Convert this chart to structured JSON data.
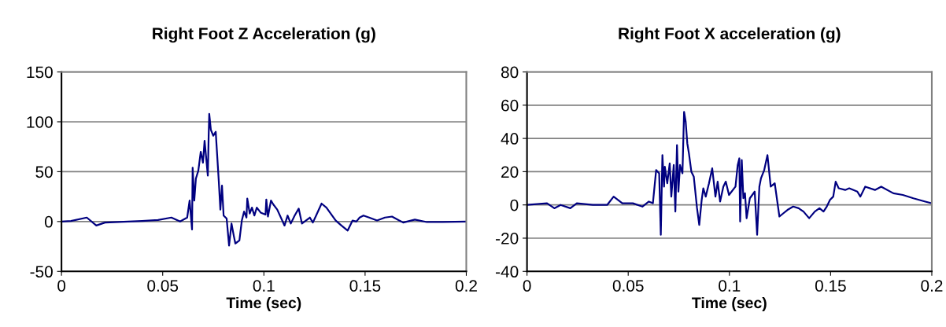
{
  "chart_data": [
    {
      "type": "line",
      "title": "Right Foot Z Acceleration (g)",
      "xlabel": "Time (sec)",
      "xlim": [
        0,
        0.2
      ],
      "xticks": [
        0,
        0.05,
        0.1,
        0.15,
        0.2
      ],
      "ylim": [
        -50,
        150
      ],
      "yticks": [
        -50,
        0,
        50,
        100,
        150
      ],
      "grid": "y",
      "marker": "none",
      "line_style": "solid",
      "series": [
        {
          "color": "#000080",
          "x": [
            0,
            0.0047,
            0.0125,
            0.0172,
            0.0215,
            0.0398,
            0.0477,
            0.0543,
            0.0586,
            0.0621,
            0.0633,
            0.0645,
            0.0648,
            0.0656,
            0.0664,
            0.0676,
            0.0688,
            0.0699,
            0.0707,
            0.0723,
            0.0727,
            0.073,
            0.0738,
            0.075,
            0.0762,
            0.0777,
            0.0785,
            0.0793,
            0.0801,
            0.0816,
            0.0828,
            0.084,
            0.0852,
            0.0859,
            0.0879,
            0.0891,
            0.0902,
            0.0914,
            0.0918,
            0.093,
            0.0941,
            0.0953,
            0.0965,
            0.0984,
            0.1008,
            0.1012,
            0.102,
            0.1035,
            0.1047,
            0.1066,
            0.1102,
            0.1117,
            0.1133,
            0.1152,
            0.1172,
            0.1188,
            0.1227,
            0.1242,
            0.1258,
            0.1285,
            0.1309,
            0.1355,
            0.1383,
            0.1414,
            0.1438,
            0.1457,
            0.1473,
            0.1492,
            0.152,
            0.1559,
            0.1598,
            0.1633,
            0.1688,
            0.1746,
            0.1805,
            0.1883,
            0.2
          ],
          "values": [
            0,
            0.5,
            4,
            -4,
            -1,
            0.5,
            1.5,
            4,
            0,
            4,
            21,
            -8,
            54,
            21,
            43,
            51,
            70,
            59,
            81,
            46,
            85,
            108,
            92,
            86,
            90,
            41,
            12,
            36,
            6,
            3,
            -24,
            -2,
            -15,
            -22,
            -19,
            1,
            10,
            4,
            23,
            8,
            14,
            6,
            14,
            9,
            7,
            22,
            5,
            21,
            17,
            12,
            -4,
            6,
            -2,
            6,
            13,
            -2,
            4,
            -1,
            6,
            18,
            14,
            1,
            -4,
            -9,
            1,
            0,
            4,
            6,
            4,
            1,
            4,
            5,
            -1,
            2,
            -0.5,
            -0.5,
            0
          ]
        }
      ]
    },
    {
      "type": "line",
      "title": "Right Foot X acceleration (g)",
      "xlabel": "Time (sec)",
      "xlim": [
        0,
        0.2
      ],
      "xticks": [
        0,
        0.05,
        0.1,
        0.15,
        0.2
      ],
      "ylim": [
        -40,
        80
      ],
      "yticks": [
        -40,
        -20,
        0,
        20,
        40,
        60,
        80
      ],
      "grid": "y",
      "marker": "none",
      "line_style": "solid",
      "series": [
        {
          "color": "#000080",
          "x": [
            0,
            0.0099,
            0.0135,
            0.0166,
            0.0214,
            0.0246,
            0.0325,
            0.0396,
            0.0428,
            0.0471,
            0.0523,
            0.057,
            0.0602,
            0.0622,
            0.0638,
            0.0653,
            0.0661,
            0.0669,
            0.0677,
            0.0681,
            0.0693,
            0.0705,
            0.0713,
            0.0725,
            0.0733,
            0.0741,
            0.0748,
            0.0756,
            0.0768,
            0.0776,
            0.0784,
            0.0792,
            0.08,
            0.0812,
            0.0824,
            0.084,
            0.0851,
            0.0863,
            0.0871,
            0.0883,
            0.0899,
            0.0915,
            0.0931,
            0.0942,
            0.0954,
            0.097,
            0.0982,
            0.0998,
            0.103,
            0.1041,
            0.1049,
            0.1053,
            0.1061,
            0.1069,
            0.1077,
            0.1085,
            0.1101,
            0.1125,
            0.1137,
            0.1148,
            0.1156,
            0.1172,
            0.1188,
            0.1204,
            0.1224,
            0.1247,
            0.1267,
            0.1287,
            0.1315,
            0.1342,
            0.1366,
            0.1394,
            0.1422,
            0.1445,
            0.1465,
            0.1481,
            0.1497,
            0.1513,
            0.1525,
            0.154,
            0.1572,
            0.1592,
            0.1632,
            0.1647,
            0.1671,
            0.1719,
            0.175,
            0.181,
            0.1857,
            0.1909,
            0.1968,
            0.2
          ],
          "values": [
            0,
            1,
            -2,
            0,
            -2,
            1,
            0,
            0,
            5,
            1,
            1,
            -1,
            2,
            1,
            21,
            19,
            -18,
            30,
            11,
            23,
            13,
            25,
            5,
            24,
            -4,
            36,
            8,
            24,
            19,
            56,
            50,
            37,
            31,
            20,
            17,
            -2,
            -12,
            3,
            10,
            5,
            13,
            22,
            5,
            14,
            2,
            11,
            14,
            6,
            11,
            24,
            28,
            -10,
            27,
            4,
            7,
            -8,
            4,
            8,
            -18,
            11,
            16,
            21,
            30,
            11,
            13,
            -7,
            -5,
            -3,
            -1,
            -2,
            -4,
            -8,
            -4,
            -2,
            -4,
            -1,
            3,
            5,
            14,
            10,
            9,
            10,
            8,
            5,
            11,
            9,
            11,
            7,
            6,
            4,
            2,
            1
          ]
        }
      ]
    }
  ]
}
